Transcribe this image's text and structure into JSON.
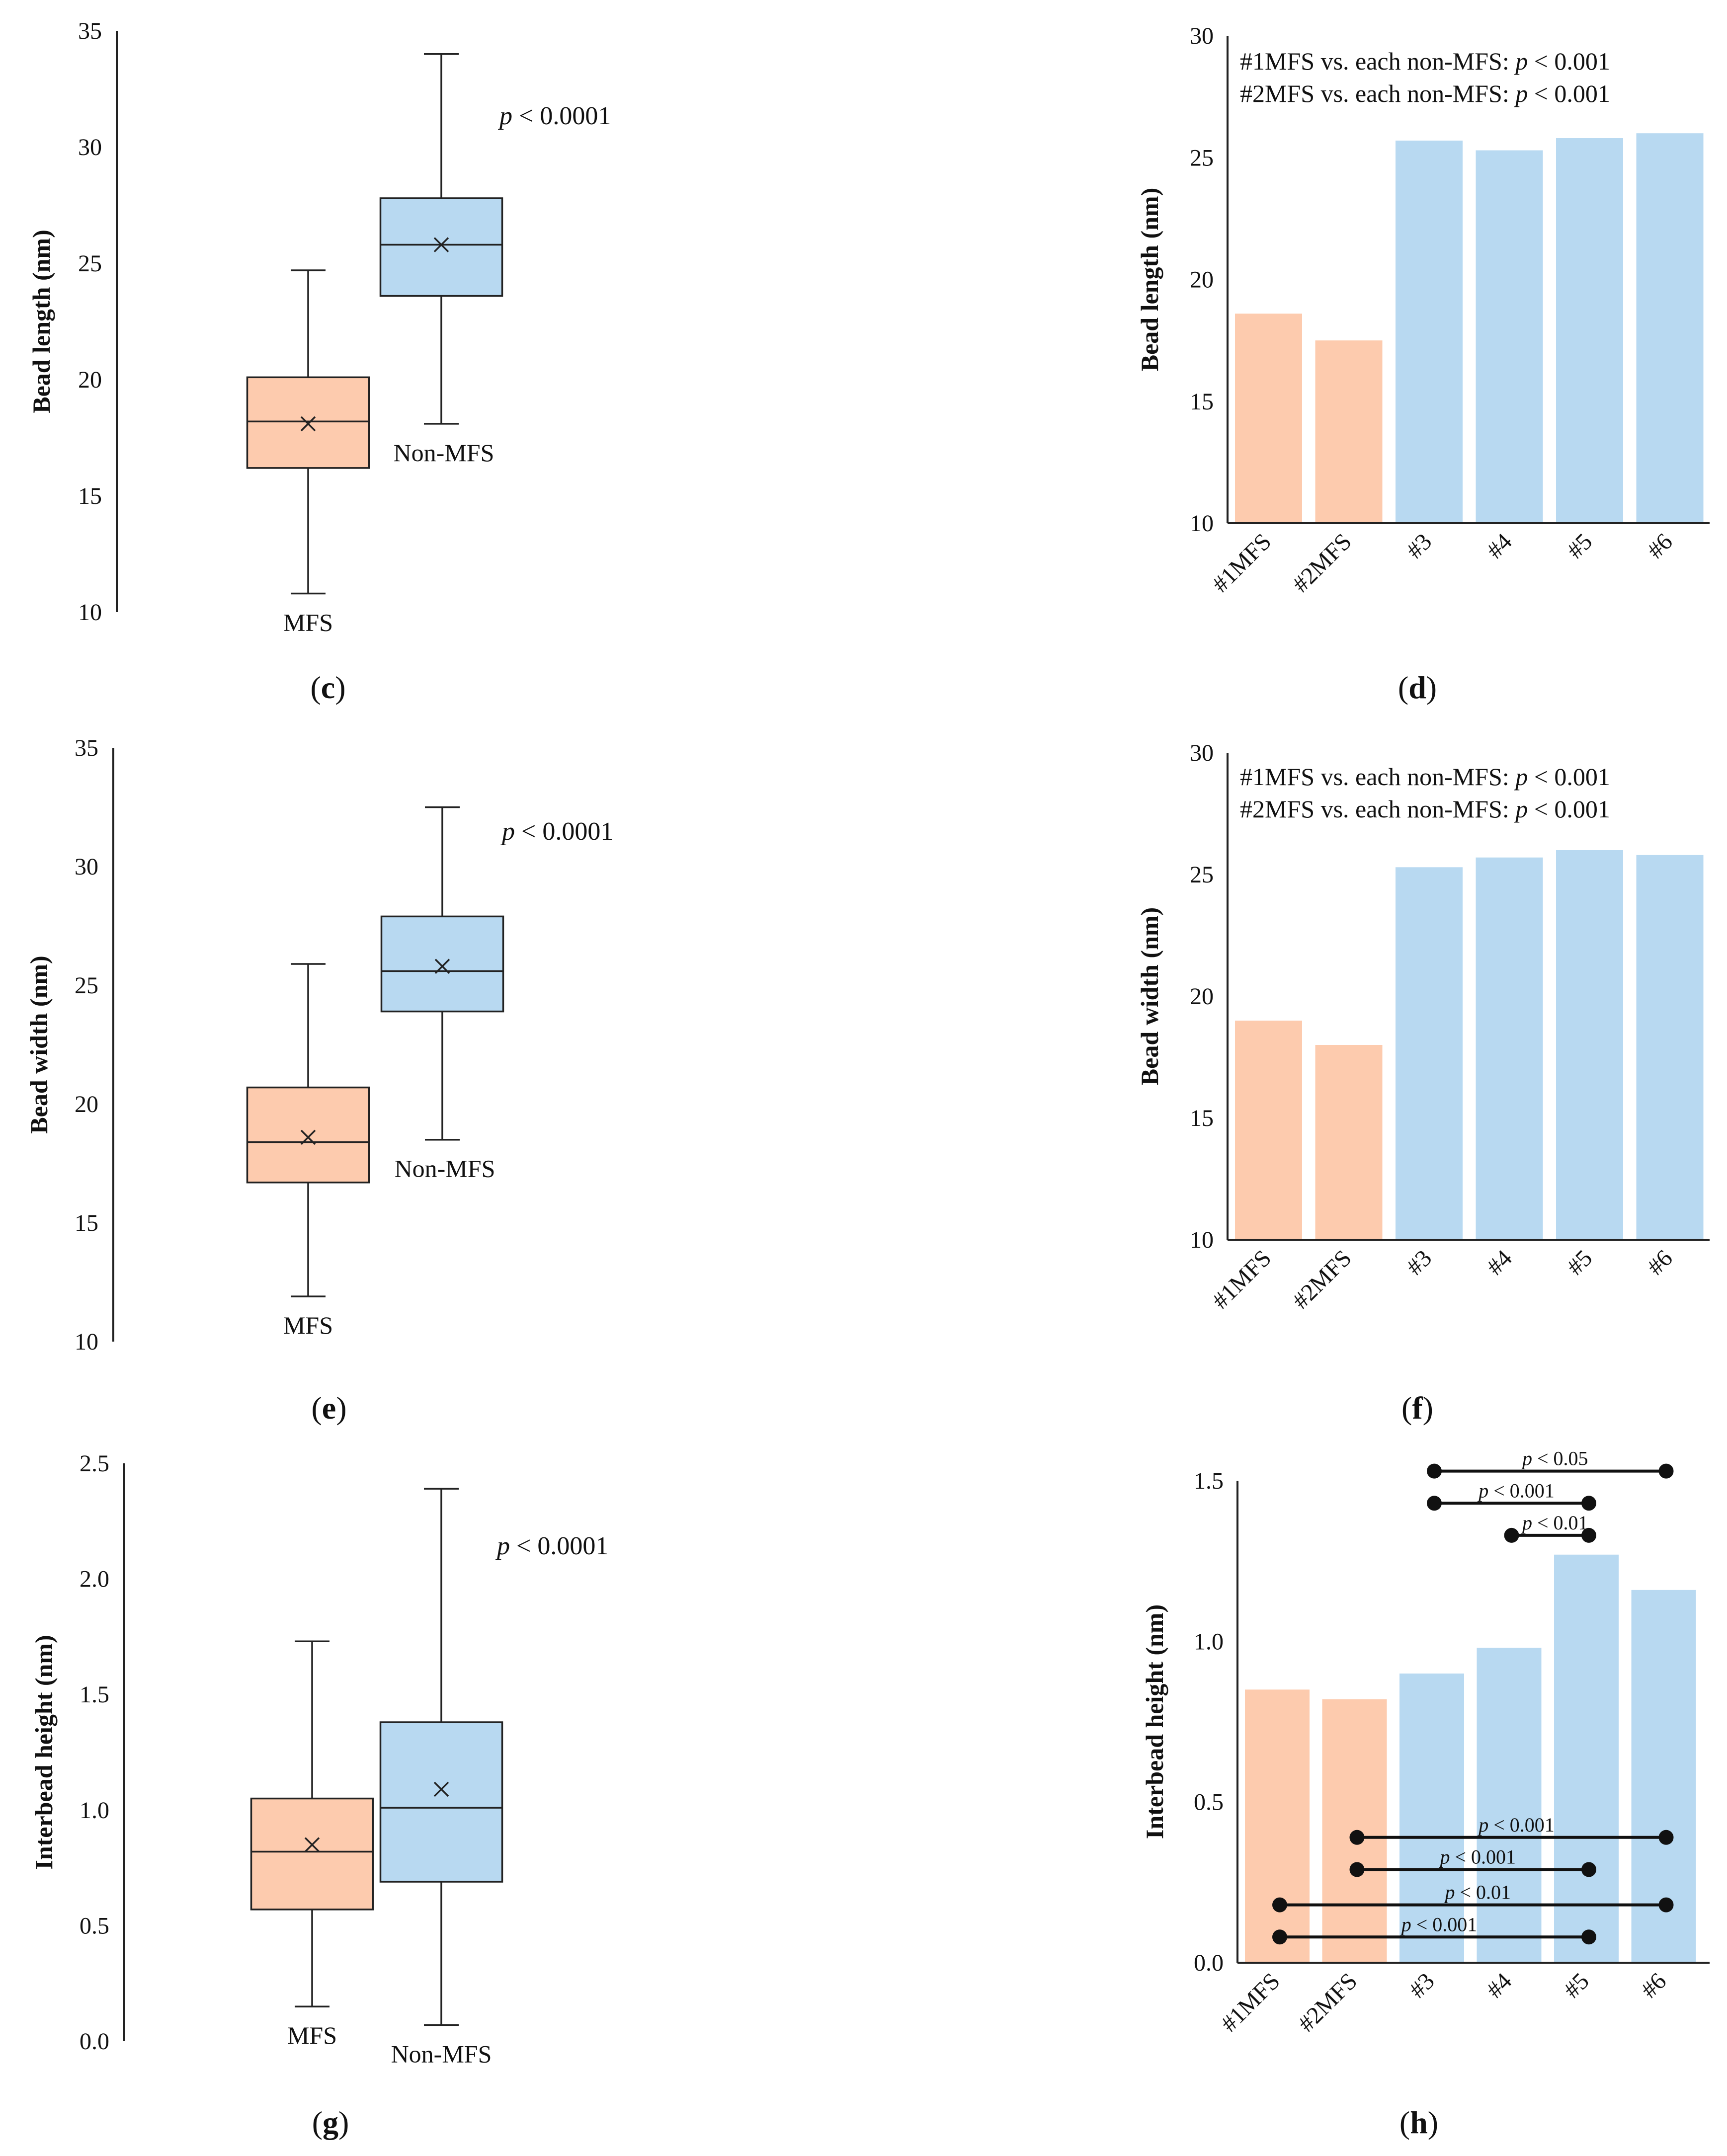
{
  "colors": {
    "mfs": "#fdcbae",
    "nonmfs": "#b8d9f1",
    "axis": "#222222"
  },
  "chart_data": [
    {
      "id": "c",
      "panel_label": "c",
      "type": "box",
      "ylabel": "Bead length (nm)",
      "ylim": [
        10,
        35
      ],
      "ticks": [
        10,
        15,
        20,
        25,
        30,
        35
      ],
      "annotation_p": "p",
      "annotation_rest": " < 0.0001",
      "groups": [
        {
          "name": "MFS",
          "label_pos": "below",
          "min": 10.8,
          "q1": 16.2,
          "median": 18.2,
          "q3": 20.1,
          "max": 24.7,
          "mean": 18.1
        },
        {
          "name": "Non-MFS",
          "label_pos": "right-below",
          "min": 18.1,
          "q1": 23.6,
          "median": 25.8,
          "q3": 27.8,
          "max": 34.0,
          "mean": 25.8
        }
      ]
    },
    {
      "id": "d",
      "panel_label": "d",
      "type": "bar",
      "ylabel": "Bead length (nm)",
      "ylim": [
        10,
        30
      ],
      "ticks": [
        10,
        15,
        20,
        25,
        30
      ],
      "categories": [
        "#1MFS",
        "#2MFS",
        "#3",
        "#4",
        "#5",
        "#6"
      ],
      "groups": [
        "mfs",
        "mfs",
        "nonmfs",
        "nonmfs",
        "nonmfs",
        "nonmfs"
      ],
      "values": [
        18.6,
        17.5,
        25.7,
        25.3,
        25.8,
        26.0
      ],
      "notes": [
        {
          "pre": "#1MFS vs. each non-MFS: ",
          "p": "p",
          "post": " < 0.001"
        },
        {
          "pre": "#2MFS vs. each non-MFS: ",
          "p": "p",
          "post": " < 0.001"
        }
      ]
    },
    {
      "id": "e",
      "panel_label": "e",
      "type": "box",
      "ylabel": "Bead width (nm)",
      "ylim": [
        10,
        35
      ],
      "ticks": [
        10,
        15,
        20,
        25,
        30,
        35
      ],
      "annotation_p": "p",
      "annotation_rest": " < 0.0001",
      "groups": [
        {
          "name": "MFS",
          "label_pos": "below",
          "min": 11.9,
          "q1": 16.7,
          "median": 18.4,
          "q3": 20.7,
          "max": 25.9,
          "mean": 18.6
        },
        {
          "name": "Non-MFS",
          "label_pos": "right-below",
          "min": 18.5,
          "q1": 23.9,
          "median": 25.6,
          "q3": 27.9,
          "max": 32.5,
          "mean": 25.8
        }
      ]
    },
    {
      "id": "f",
      "panel_label": "f",
      "type": "bar",
      "ylabel": "Bead width (nm)",
      "ylim": [
        10,
        30
      ],
      "ticks": [
        10,
        15,
        20,
        25,
        30
      ],
      "categories": [
        "#1MFS",
        "#2MFS",
        "#3",
        "#4",
        "#5",
        "#6"
      ],
      "groups": [
        "mfs",
        "mfs",
        "nonmfs",
        "nonmfs",
        "nonmfs",
        "nonmfs"
      ],
      "values": [
        19.0,
        18.0,
        25.3,
        25.7,
        26.0,
        25.8
      ],
      "notes": [
        {
          "pre": "#1MFS vs. each non-MFS: ",
          "p": "p",
          "post": " < 0.001"
        },
        {
          "pre": "#2MFS vs. each non-MFS: ",
          "p": "p",
          "post": " < 0.001"
        }
      ]
    },
    {
      "id": "g",
      "panel_label": "g",
      "type": "box",
      "ylabel": "Interbead height (nm)",
      "ylim": [
        0,
        2.5
      ],
      "ticks": [
        0.0,
        0.5,
        1.0,
        1.5,
        2.0,
        2.5
      ],
      "tick_labels": [
        "0.0",
        "0.5",
        "1.0",
        "1.5",
        "2.0",
        "2.5"
      ],
      "annotation_p": "p",
      "annotation_rest": " < 0.0001",
      "groups": [
        {
          "name": "MFS",
          "label_pos": "below",
          "min": 0.15,
          "q1": 0.57,
          "median": 0.82,
          "q3": 1.05,
          "max": 1.73,
          "mean": 0.85
        },
        {
          "name": "Non-MFS",
          "label_pos": "below",
          "min": 0.07,
          "q1": 0.69,
          "median": 1.01,
          "q3": 1.38,
          "max": 2.39,
          "mean": 1.09
        }
      ]
    },
    {
      "id": "h",
      "panel_label": "h",
      "type": "bar",
      "ylabel": "Interbead height (nm)",
      "ylim": [
        0,
        1.5
      ],
      "ticks": [
        0.0,
        0.5,
        1.0,
        1.5
      ],
      "tick_labels": [
        "0.0",
        "0.5",
        "1.0",
        "1.5"
      ],
      "categories": [
        "#1MFS",
        "#2MFS",
        "#3",
        "#4",
        "#5",
        "#6"
      ],
      "groups": [
        "mfs",
        "mfs",
        "nonmfs",
        "nonmfs",
        "nonmfs",
        "nonmfs"
      ],
      "values": [
        0.85,
        0.82,
        0.9,
        0.98,
        1.27,
        1.16
      ],
      "comparisons": [
        {
          "a": 2,
          "b": 5,
          "level": 1.53,
          "p": "p",
          "post": " < 0.05"
        },
        {
          "a": 2,
          "b": 4,
          "level": 1.43,
          "p": "p",
          "post": " < 0.001"
        },
        {
          "a": 3,
          "b": 4,
          "level": 1.33,
          "p": "p",
          "post": " < 0.01"
        },
        {
          "a": 1,
          "b": 5,
          "level": 0.39,
          "p": "p",
          "post": " < 0.001"
        },
        {
          "a": 1,
          "b": 4,
          "level": 0.29,
          "p": "p",
          "post": " < 0.001"
        },
        {
          "a": 0,
          "b": 5,
          "level": 0.18,
          "p": "p",
          "post": " < 0.01"
        },
        {
          "a": 0,
          "b": 4,
          "level": 0.08,
          "p": "p",
          "post": " < 0.001"
        }
      ]
    }
  ]
}
